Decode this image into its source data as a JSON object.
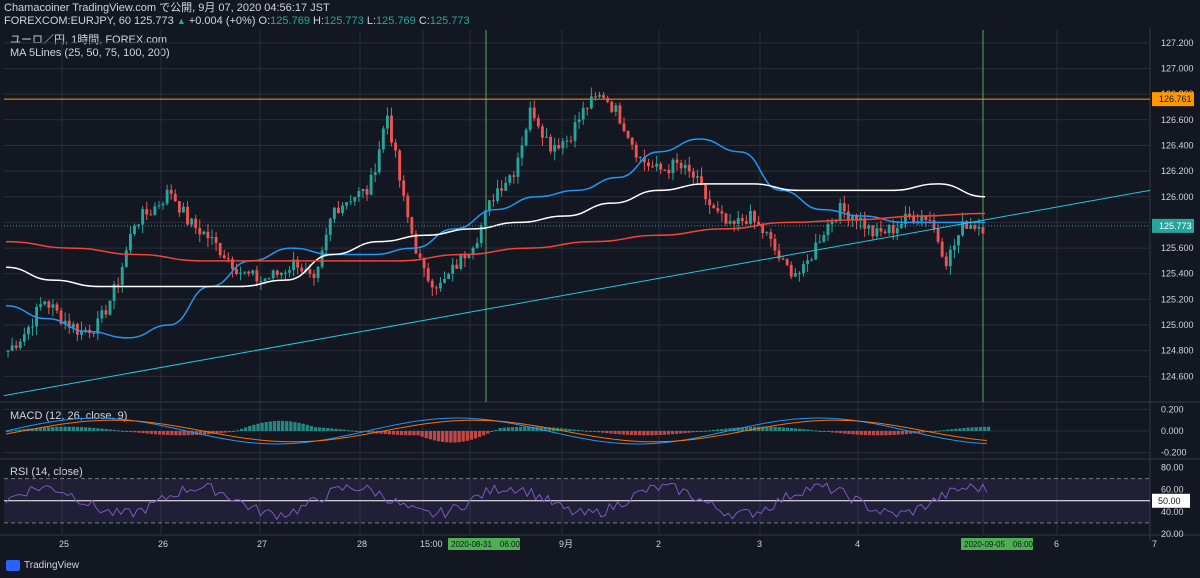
{
  "header": {
    "line1": "Chamacoiner TradingView.com で公開, 9月 07, 2020 04:56:17 JST",
    "symbol_prefix": "FOREXCOM:EURJPY, 60",
    "symbol_last": "125.773",
    "change_arrow": "▲",
    "change_text": "+0.004 (+0%)",
    "o_label": "O:",
    "o_value": "125.769",
    "h_label": "H:",
    "h_value": "125.773",
    "l_label": "L:",
    "l_value": "125.769",
    "c_label": "C:",
    "c_value": "125.773",
    "pane_title": "ユーロ／円, 1時間, FOREX.com",
    "ma_title": "MA 5Lines (25, 50, 75, 100, 200)"
  },
  "macd": {
    "title": "MACD (12, 26, close, 9)"
  },
  "rsi": {
    "title": "RSI (14, close)"
  },
  "footer": {
    "brand": "TradingView"
  },
  "colors": {
    "background": "#131722",
    "grid": "#2a2e39",
    "up": "#26a69a",
    "down": "#ef5350",
    "ma_blue": "#2196f3",
    "ma_white": "#ffffff",
    "ma_red": "#f44336",
    "trendline": "#26c6da",
    "vline": "#4caf50",
    "hline": "#ff9800",
    "rsi_line": "#7e57c2",
    "macd_line": "#2196f3",
    "signal_line": "#ff6d00"
  },
  "chart_data": [
    {
      "type": "candlestick",
      "title": "FOREXCOM:EURJPY, 60",
      "ylim": [
        124.4,
        127.3
      ],
      "y_ticks": [
        "127.200",
        "127.000",
        "126.800",
        "126.600",
        "126.400",
        "126.200",
        "126.000",
        "125.800",
        "125.600",
        "125.400",
        "125.200",
        "125.000",
        "124.800",
        "124.600"
      ],
      "price_label": "125.773",
      "hline_value": 126.761,
      "hline_label": "126.761",
      "x_labels": [
        "25",
        "26",
        "27",
        "28",
        "15:00",
        "2020-08-31　06:00",
        "9月",
        "2",
        "3",
        "4",
        "2020-09-05　06:00",
        "6",
        "7"
      ],
      "vertical_lines": [
        "2020-08-31 06:00",
        "2020-09-05 06:00"
      ],
      "anchors": [
        124.8,
        124.95,
        125.2,
        125.05,
        124.95,
        125.0,
        125.3,
        125.8,
        125.9,
        126.05,
        125.8,
        125.7,
        125.55,
        125.4,
        125.35,
        125.4,
        125.5,
        125.3,
        125.9,
        126.0,
        126.05,
        126.65,
        125.9,
        125.4,
        125.3,
        125.5,
        125.7,
        126.05,
        126.2,
        126.7,
        126.4,
        126.45,
        126.7,
        126.8,
        126.6,
        126.3,
        126.2,
        126.25,
        126.15,
        125.9,
        125.75,
        125.85,
        125.7,
        125.45,
        125.4,
        125.7,
        125.9,
        125.85,
        125.7,
        125.75,
        125.85,
        125.85,
        125.5,
        125.8,
        125.77
      ],
      "moving_averages": [
        {
          "name": "MA 50",
          "anchors": [
            125.15,
            125.05,
            124.95,
            124.9,
            125.0,
            125.3,
            125.5,
            125.6,
            125.55,
            125.55,
            125.6,
            125.75,
            125.9,
            126.0,
            126.05,
            126.15,
            126.35,
            126.45,
            126.35,
            126.05,
            125.9,
            125.85,
            125.8,
            125.8,
            125.8
          ]
        },
        {
          "name": "MA 75",
          "anchors": [
            125.45,
            125.35,
            125.3,
            125.3,
            125.3,
            125.3,
            125.35,
            125.55,
            125.65,
            125.7,
            125.75,
            125.8,
            125.85,
            125.95,
            126.05,
            126.1,
            126.1,
            126.05,
            126.05,
            126.05,
            126.1,
            126.0
          ]
        },
        {
          "name": "MA 200",
          "anchors": [
            125.65,
            125.6,
            125.55,
            125.5,
            125.5,
            125.5,
            125.5,
            125.55,
            125.6,
            125.65,
            125.7,
            125.75,
            125.8,
            125.82,
            125.85,
            125.87
          ]
        }
      ],
      "trendline": {
        "start": 124.45,
        "end": 126.05
      }
    },
    {
      "type": "histogram",
      "title": "MACD (12, 26, close, 9)",
      "ylim": [
        -0.25,
        0.25
      ],
      "y_ticks": [
        "0.200",
        "0.000",
        "-0.200"
      ]
    },
    {
      "type": "line",
      "title": "RSI (14, close)",
      "ylim": [
        20,
        85
      ],
      "y_ticks": [
        "80.00",
        "60.00",
        "40.00",
        "20.00"
      ],
      "bands": [
        30,
        70
      ],
      "current_label": "50.00",
      "current_value": 50
    }
  ]
}
